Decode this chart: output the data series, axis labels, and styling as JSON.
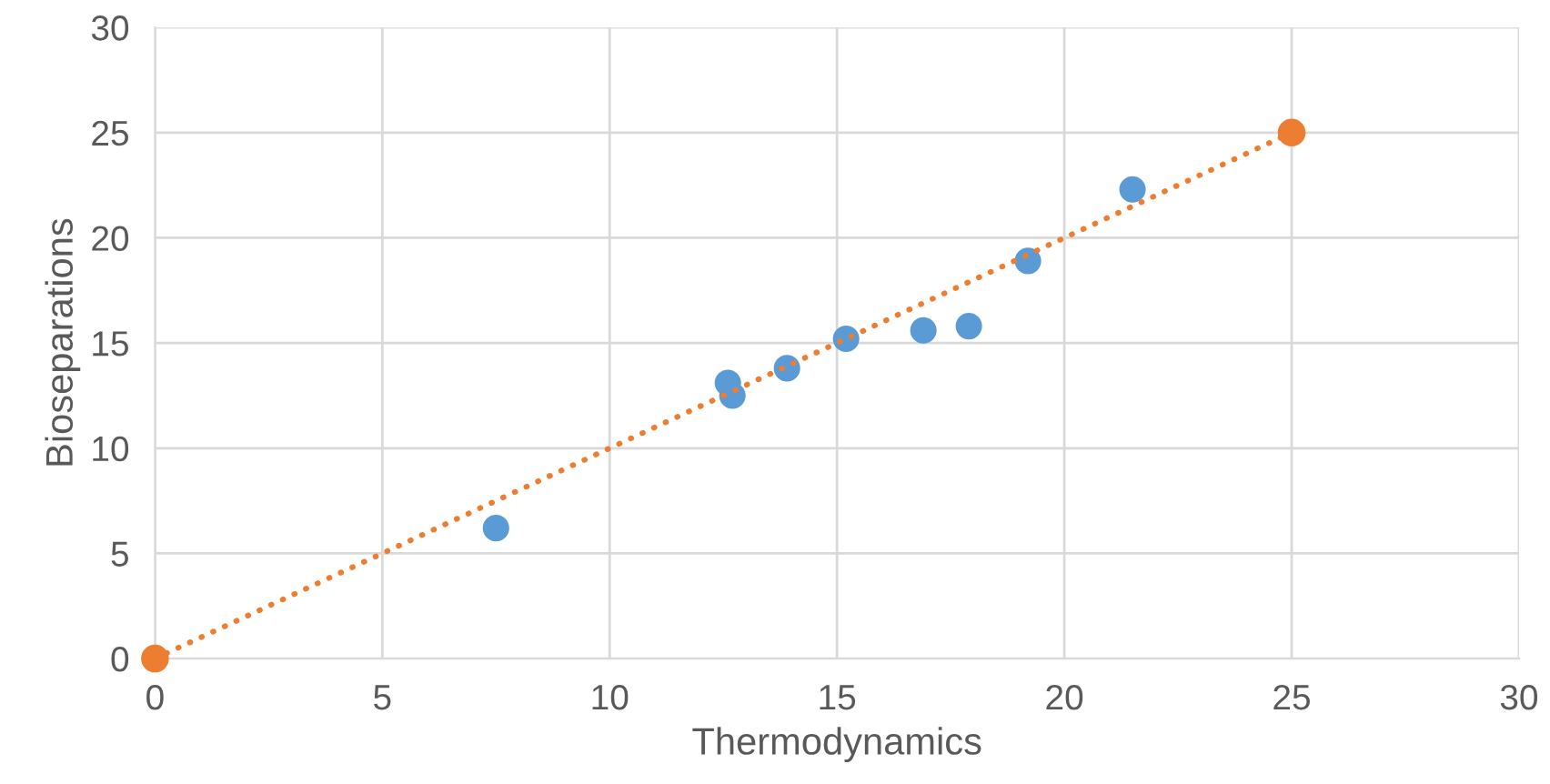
{
  "chart_data": {
    "type": "scatter",
    "xlabel": "Thermodynamics",
    "ylabel": "Bioseparations",
    "series": [
      {
        "color": "#5b9bd5",
        "x": [
          7.5,
          12.6,
          12.7,
          13.9,
          15.2,
          16.9,
          17.9,
          19.2,
          21.5
        ],
        "values": [
          6.2,
          13.1,
          12.5,
          13.8,
          15.2,
          15.6,
          15.8,
          18.9,
          22.3
        ],
        "marker": "circle"
      },
      {
        "type": "line",
        "color": "#ed7d31",
        "x": [
          0,
          25
        ],
        "values": [
          0,
          25
        ],
        "marker": "circle",
        "line_style": "dotted"
      }
    ],
    "xlim": [
      0,
      30
    ],
    "xticks": [
      0,
      5,
      10,
      15,
      20,
      25,
      30
    ],
    "ylim": [
      0,
      30
    ],
    "yticks": [
      0,
      5,
      10,
      15,
      20,
      25,
      30
    ],
    "grid": true
  }
}
